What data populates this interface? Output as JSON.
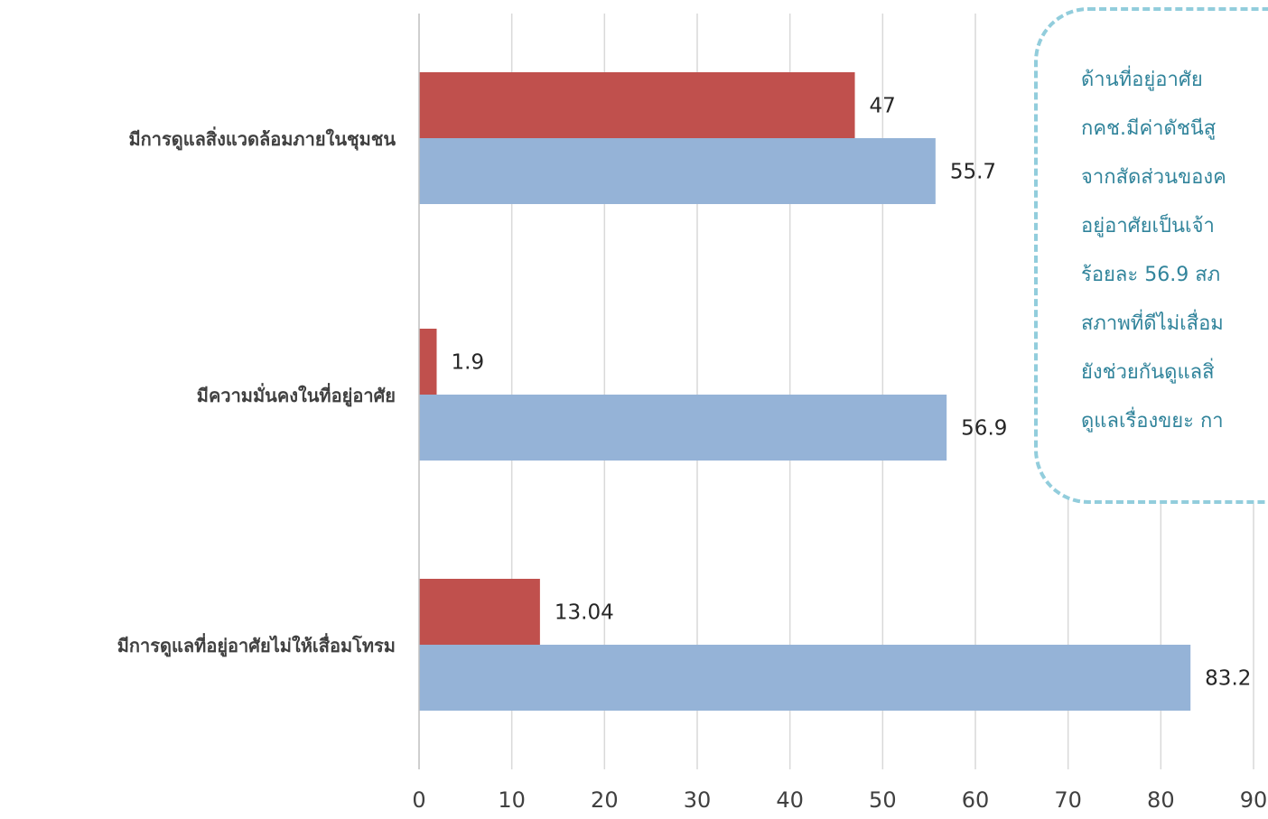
{
  "chart_data": {
    "type": "bar",
    "orientation": "horizontal",
    "categories": [
      "มีการดูแลสิ่งแวดล้อมภายในชุมชน",
      "มีความมั่นคงในที่อยู่อาศัย",
      "มีการดูแลที่อยู่อาศัยไม่ให้เสื่อมโทรม"
    ],
    "series": [
      {
        "values": [
          47,
          1.9,
          13.04
        ],
        "color": "#c0504d",
        "labels": [
          "47",
          "1.9",
          "13.04"
        ]
      },
      {
        "values": [
          55.7,
          56.9,
          83.2
        ],
        "color": "#95b3d7",
        "labels": [
          "55.7",
          "56.9",
          "83.2"
        ]
      }
    ],
    "xlim": [
      0,
      90
    ],
    "xticks": [
      0,
      10,
      20,
      30,
      40,
      50,
      60,
      70,
      80,
      90
    ],
    "grid": true,
    "gridline_color": "#d9d9d9",
    "title": "",
    "xlabel": "",
    "ylabel": ""
  },
  "callout": {
    "border_color": "#92cddc",
    "text_color": "#31849b",
    "lines": [
      "ด้านที่อยู่อาศัย",
      "กคช.มีค่าดัชนีสู",
      "จากสัดส่วนของค",
      "อยู่อาศัยเป็นเจ้า",
      "ร้อยละ 56.9  สภ",
      "สภาพที่ดีไม่เสื่อม",
      "ยังช่วยกันดูแลสิ่",
      "ดูแลเรื่องขยะ กา"
    ]
  }
}
